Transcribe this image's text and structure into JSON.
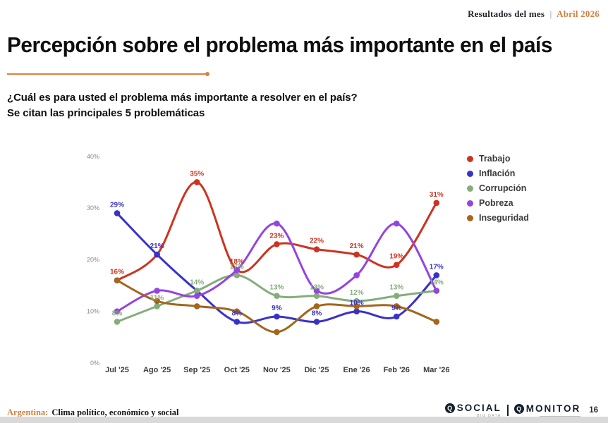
{
  "header": {
    "label": "Resultados del mes",
    "separator": "|",
    "period": "Abril 2026"
  },
  "title": "Percepción sobre el problema más importante en el país",
  "subtitle": {
    "line1": "¿Cuál es para usted el problema más importante a resolver en el país?",
    "line2": "Se citan las principales 5 problemáticas"
  },
  "accent_color": "#d9823c",
  "chart_data": {
    "type": "line",
    "title": "",
    "xlabel": "",
    "ylabel": "",
    "categories": [
      "Jul '25",
      "Ago '25",
      "Sep '25",
      "Oct '25",
      "Nov '25",
      "Dic '25",
      "Ene '26",
      "Feb '26",
      "Mar '26"
    ],
    "yticks": [
      "0%",
      "10%",
      "20%",
      "30%",
      "40%"
    ],
    "ylim": [
      0,
      40
    ],
    "grid": false,
    "legend_position": "right",
    "line_style": "smooth",
    "series": [
      {
        "name": "Trabajo",
        "color": "#cc3421",
        "values": [
          16,
          21,
          35,
          18,
          23,
          22,
          21,
          19,
          31
        ],
        "point_labels": [
          "16%",
          null,
          "35%",
          "18%",
          "23%",
          "22%",
          "21%",
          "19%",
          "31%"
        ]
      },
      {
        "name": "Inflación",
        "color": "#3832c8",
        "values": [
          29,
          21,
          14,
          8,
          9,
          8,
          10,
          9,
          17
        ],
        "point_labels": [
          "29%",
          "21%",
          null,
          "8%",
          "9%",
          "8%",
          "10%",
          "9%",
          "17%"
        ]
      },
      {
        "name": "Corrupción",
        "color": "#85ad7c",
        "values": [
          8,
          11,
          14,
          17,
          13,
          13,
          12,
          13,
          14
        ],
        "point_labels": [
          "8%",
          "11%",
          "14%",
          "17%",
          "13%",
          "13%",
          "12%",
          "13%",
          "14%"
        ]
      },
      {
        "name": "Pobreza",
        "color": "#9444e0",
        "values": [
          10,
          14,
          13,
          18,
          27,
          14,
          17,
          27,
          14
        ],
        "point_labels": [
          null,
          null,
          null,
          null,
          null,
          null,
          null,
          null,
          null
        ]
      },
      {
        "name": "Inseguridad",
        "color": "#a3661c",
        "values": [
          16,
          12,
          11,
          10,
          6,
          11,
          11,
          11,
          8
        ],
        "point_labels": [
          null,
          null,
          null,
          null,
          null,
          null,
          null,
          null,
          null
        ]
      }
    ]
  },
  "footer": {
    "country_label": "Argentina:",
    "report_name": "Clima político, económico y social",
    "logo_social": "SOCIAL",
    "logo_social_sub": "BIG DATA",
    "logo_monitor": "MONITOR",
    "logo_icon_letter": "Q",
    "page_number": "16"
  }
}
